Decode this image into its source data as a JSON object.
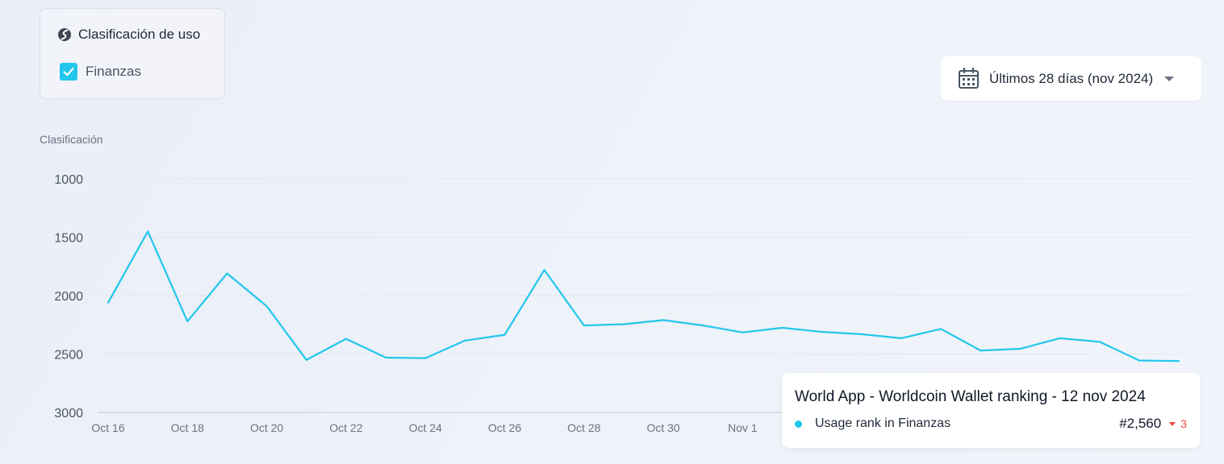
{
  "filter": {
    "title": "Clasificación de uso",
    "category_label": "Finanzas",
    "checked": true
  },
  "date_range": {
    "label": "Últimos 28 días (nov 2024)"
  },
  "tooltip": {
    "title": "World App - Worldcoin Wallet ranking - 12 nov 2024",
    "series_label": "Usage rank in Finanzas",
    "value": "#2,560",
    "delta": "3"
  },
  "colors": {
    "series": "#22c7ec",
    "axis": "#cfd6e2",
    "grid": "#e3e7ef",
    "delta_down": "#ef4444"
  },
  "chart_data": {
    "type": "line",
    "ylabel": "Clasificación",
    "y_inverted": false,
    "ylim": [
      1000,
      3000
    ],
    "yticks": [
      1000,
      1500,
      2000,
      2500,
      3000
    ],
    "x": [
      "2024-10-16",
      "2024-10-17",
      "2024-10-18",
      "2024-10-19",
      "2024-10-20",
      "2024-10-21",
      "2024-10-22",
      "2024-10-23",
      "2024-10-24",
      "2024-10-25",
      "2024-10-26",
      "2024-10-27",
      "2024-10-28",
      "2024-10-29",
      "2024-10-30",
      "2024-10-31",
      "2024-11-01",
      "2024-11-02",
      "2024-11-03",
      "2024-11-04",
      "2024-11-05",
      "2024-11-06",
      "2024-11-07",
      "2024-11-08",
      "2024-11-09",
      "2024-11-10",
      "2024-11-11",
      "2024-11-12"
    ],
    "xticks": [
      "Oct 16",
      "Oct 18",
      "Oct 20",
      "Oct 22",
      "Oct 24",
      "Oct 26",
      "Oct 28",
      "Oct 30",
      "Nov 1"
    ],
    "series": [
      {
        "name": "Usage rank in Finanzas",
        "values": [
          2060,
          1450,
          2220,
          1810,
          2090,
          2550,
          2370,
          2530,
          2535,
          2385,
          2335,
          1780,
          2255,
          2245,
          2210,
          2255,
          2315,
          2275,
          2310,
          2330,
          2365,
          2285,
          2470,
          2455,
          2365,
          2395,
          2555,
          2560
        ]
      }
    ],
    "grid": true,
    "legend": "none"
  }
}
